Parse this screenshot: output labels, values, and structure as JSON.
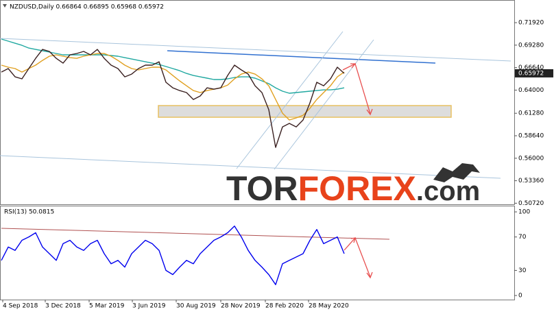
{
  "chart_data": [
    {
      "type": "line",
      "title": "NZDUSD,Daily  0.66864 0.66895 0.65968 0.65972",
      "x": [
        2,
        12,
        22,
        32,
        42,
        52,
        62,
        72,
        82,
        92,
        102,
        112,
        122,
        132,
        142,
        152,
        162,
        172,
        182,
        192,
        202,
        212,
        222,
        232,
        242,
        252,
        262,
        272,
        282,
        292,
        302,
        312,
        322,
        332,
        342,
        352,
        362,
        372,
        382,
        392,
        402,
        412,
        422,
        432,
        442,
        452,
        462,
        472,
        482,
        492,
        502
      ],
      "xlim": [
        0,
        750
      ],
      "ylim": [
        0.5059,
        0.7442
      ],
      "yticks": [
        {
          "value": 0.7192,
          "label": "0.71920"
        },
        {
          "value": 0.6928,
          "label": "0.69280"
        },
        {
          "value": 0.6664,
          "label": "0.66640"
        },
        {
          "value": 0.64,
          "label": "0.64000"
        },
        {
          "value": 0.6128,
          "label": "0.61280"
        },
        {
          "value": 0.5864,
          "label": "0.58640"
        },
        {
          "value": 0.56,
          "label": "0.56000"
        },
        {
          "value": 0.5336,
          "label": "0.53360"
        },
        {
          "value": 0.5072,
          "label": "0.50720"
        }
      ],
      "last_price": 0.65972,
      "series": [
        {
          "color": "#20a8a0",
          "values": [
            0.6999,
            0.6975,
            0.695,
            0.6926,
            0.6894,
            0.6878,
            0.6862,
            0.6846,
            0.683,
            0.6814,
            0.6814,
            0.6814,
            0.6814,
            0.6814,
            0.6814,
            0.6814,
            0.6806,
            0.6798,
            0.6781,
            0.6765,
            0.6749,
            0.6733,
            0.6717,
            0.6701,
            0.6677,
            0.6653,
            0.6628,
            0.6596,
            0.6572,
            0.6556,
            0.654,
            0.6524,
            0.6524,
            0.6532,
            0.6548,
            0.6556,
            0.6556,
            0.654,
            0.6508,
            0.6476,
            0.6427,
            0.6387,
            0.6363,
            0.6371,
            0.6379,
            0.6387,
            0.6395,
            0.6403,
            0.6403,
            0.6411,
            0.6427
          ]
        },
        {
          "color": "#e0a020",
          "values": [
            0.6693,
            0.6669,
            0.6653,
            0.6612,
            0.6653,
            0.6693,
            0.6749,
            0.6798,
            0.6814,
            0.6798,
            0.6781,
            0.6773,
            0.6798,
            0.6814,
            0.683,
            0.683,
            0.6798,
            0.6749,
            0.6693,
            0.6653,
            0.6637,
            0.6653,
            0.6669,
            0.6669,
            0.6637,
            0.6572,
            0.6508,
            0.6451,
            0.6395,
            0.6371,
            0.6395,
            0.6411,
            0.6427,
            0.6459,
            0.6532,
            0.6588,
            0.6612,
            0.6588,
            0.6532,
            0.6451,
            0.629,
            0.6129,
            0.6049,
            0.6073,
            0.6105,
            0.6186,
            0.629,
            0.6371,
            0.6451,
            0.6556,
            0.6612
          ]
        },
        {
          "color": "#3a2020",
          "values": [
            0.6612,
            0.6653,
            0.6556,
            0.6532,
            0.6653,
            0.6773,
            0.6878,
            0.6854,
            0.6773,
            0.6717,
            0.6814,
            0.683,
            0.6854,
            0.6814,
            0.6878,
            0.6773,
            0.6693,
            0.6653,
            0.6556,
            0.6588,
            0.6653,
            0.6693,
            0.6693,
            0.6733,
            0.6492,
            0.6427,
            0.6395,
            0.6371,
            0.629,
            0.6331,
            0.6427,
            0.6411,
            0.6427,
            0.6572,
            0.6693,
            0.6637,
            0.6588,
            0.6451,
            0.6371,
            0.617,
            0.5727,
            0.5968,
            0.6009,
            0.5968,
            0.6049,
            0.625,
            0.6492,
            0.6451,
            0.6532,
            0.6669,
            0.6597
          ]
        }
      ],
      "watermark": [
        "TOR",
        "FOREX",
        ".com"
      ]
    },
    {
      "type": "line",
      "title": "RSI(13) 50.0815",
      "x": [
        2,
        12,
        22,
        32,
        42,
        52,
        62,
        72,
        82,
        92,
        102,
        112,
        122,
        132,
        142,
        152,
        162,
        172,
        182,
        192,
        202,
        212,
        222,
        232,
        242,
        252,
        262,
        272,
        282,
        292,
        302,
        312,
        322,
        332,
        342,
        352,
        362,
        372,
        382,
        392,
        402,
        412,
        422,
        432,
        442,
        452,
        462,
        472,
        482,
        492,
        502
      ],
      "xlim": [
        0,
        750
      ],
      "ylim": [
        -4.9,
        106.6
      ],
      "yticks": [
        100,
        70,
        30,
        0
      ],
      "xticks": [
        {
          "value": 4,
          "label": "4 Sep 2018"
        },
        {
          "value": 66,
          "label": "3 Dec 2018"
        },
        {
          "value": 130,
          "label": "5 Mar 2019"
        },
        {
          "value": 193,
          "label": "3 Jun 2019"
        },
        {
          "value": 257,
          "label": "30 Aug 2019"
        },
        {
          "value": 322,
          "label": "28 Nov 2019"
        },
        {
          "value": 387,
          "label": "28 Feb 2020"
        },
        {
          "value": 450,
          "label": "28 May 2020"
        }
      ],
      "series": [
        {
          "color": "#0000ee",
          "values": [
            42,
            58,
            54,
            66,
            70,
            75,
            58,
            50,
            42,
            62,
            66,
            58,
            54,
            62,
            66,
            50,
            38,
            42,
            34,
            50,
            58,
            66,
            62,
            54,
            30,
            25,
            34,
            42,
            38,
            50,
            58,
            66,
            70,
            75,
            83,
            70,
            54,
            42,
            34,
            25,
            13,
            38,
            42,
            46,
            50,
            66,
            79,
            62,
            66,
            70,
            50
          ]
        }
      ]
    }
  ]
}
